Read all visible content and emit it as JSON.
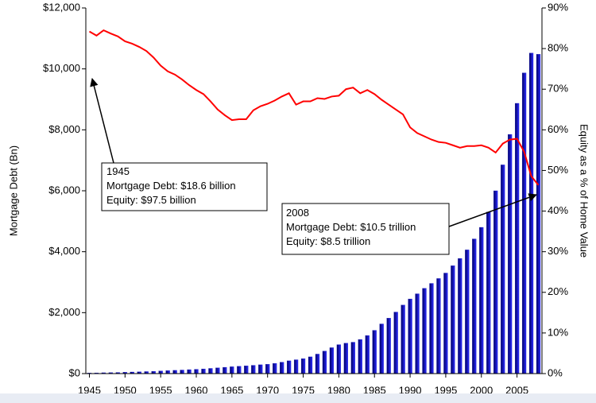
{
  "chart_data": {
    "type": "bar_line",
    "y_axis_label": "Mortgage Debt (Bn)",
    "y2_axis_label": "Equity as a % of Home Value",
    "x": [
      1945,
      1946,
      1947,
      1948,
      1949,
      1950,
      1951,
      1952,
      1953,
      1954,
      1955,
      1956,
      1957,
      1958,
      1959,
      1960,
      1961,
      1962,
      1963,
      1964,
      1965,
      1966,
      1967,
      1968,
      1969,
      1970,
      1971,
      1972,
      1973,
      1974,
      1975,
      1976,
      1977,
      1978,
      1979,
      1980,
      1981,
      1982,
      1983,
      1984,
      1985,
      1986,
      1987,
      1988,
      1989,
      1990,
      1991,
      1992,
      1993,
      1994,
      1995,
      1996,
      1997,
      1998,
      1999,
      2000,
      2001,
      2002,
      2003,
      2004,
      2005,
      2006,
      2007,
      2008
    ],
    "xlim": [
      1944.5,
      2008.5
    ],
    "xticks": [
      1945,
      1950,
      1955,
      1960,
      1965,
      1970,
      1975,
      1980,
      1985,
      1990,
      1995,
      2000,
      2005
    ],
    "ylim": [
      0,
      12000
    ],
    "yticks": [
      {
        "value": 0,
        "label": "$0"
      },
      {
        "value": 2000,
        "label": "$2,000"
      },
      {
        "value": 4000,
        "label": "$4,000"
      },
      {
        "value": 6000,
        "label": "$6,000"
      },
      {
        "value": 8000,
        "label": "$8,000"
      },
      {
        "value": 10000,
        "label": "$10,000"
      },
      {
        "value": 12000,
        "label": "$12,000"
      }
    ],
    "y2lim": [
      0,
      90
    ],
    "y2ticks": [
      {
        "value": 0,
        "label": "0%"
      },
      {
        "value": 10,
        "label": "10%"
      },
      {
        "value": 20,
        "label": "20%"
      },
      {
        "value": 30,
        "label": "30%"
      },
      {
        "value": 40,
        "label": "40%"
      },
      {
        "value": 50,
        "label": "50%"
      },
      {
        "value": 60,
        "label": "60%"
      },
      {
        "value": 70,
        "label": "70%"
      },
      {
        "value": 80,
        "label": "80%"
      },
      {
        "value": 90,
        "label": "90%"
      }
    ],
    "series": [
      {
        "name": "Mortgage Debt",
        "kind": "bar",
        "color": "#1414c8",
        "values": [
          19,
          23,
          28,
          33,
          37,
          45,
          52,
          58,
          66,
          75,
          88,
          99,
          107,
          117,
          130,
          141,
          154,
          170,
          188,
          207,
          225,
          240,
          255,
          272,
          290,
          305,
          335,
          375,
          420,
          455,
          490,
          550,
          640,
          740,
          850,
          950,
          1000,
          1030,
          1120,
          1250,
          1420,
          1630,
          1820,
          2020,
          2250,
          2450,
          2620,
          2800,
          2960,
          3120,
          3300,
          3540,
          3780,
          4060,
          4420,
          4800,
          5300,
          6000,
          6850,
          7850,
          8870,
          9870,
          10520,
          10480
        ]
      },
      {
        "name": "Equity",
        "kind": "line",
        "axis": "y2",
        "color": "#ff0000",
        "values": [
          84.2,
          83.2,
          84.5,
          83.7,
          83.0,
          81.8,
          81.2,
          80.4,
          79.4,
          77.8,
          75.8,
          74.4,
          73.6,
          72.4,
          71.0,
          69.8,
          68.8,
          67.0,
          65.0,
          63.6,
          62.4,
          62.6,
          62.6,
          64.8,
          65.8,
          66.4,
          67.2,
          68.2,
          69.0,
          66.2,
          67.0,
          67.0,
          67.8,
          67.6,
          68.2,
          68.4,
          70.0,
          70.4,
          69.0,
          69.8,
          68.8,
          67.4,
          66.2,
          65.0,
          63.8,
          60.6,
          59.2,
          58.4,
          57.6,
          57.0,
          56.8,
          56.2,
          55.6,
          56.0,
          56.0,
          56.2,
          55.6,
          54.4,
          56.6,
          57.6,
          57.8,
          54.6,
          48.6,
          46.4
        ]
      }
    ],
    "annotations": [
      {
        "lines": [
          "1945",
          "Mortgage Debt: $18.6 billion",
          "Equity: $97.5 billion"
        ]
      },
      {
        "lines": [
          "2008",
          "Mortgage Debt: $10.5 trillion",
          "Equity: $8.5 trillion"
        ]
      }
    ]
  }
}
